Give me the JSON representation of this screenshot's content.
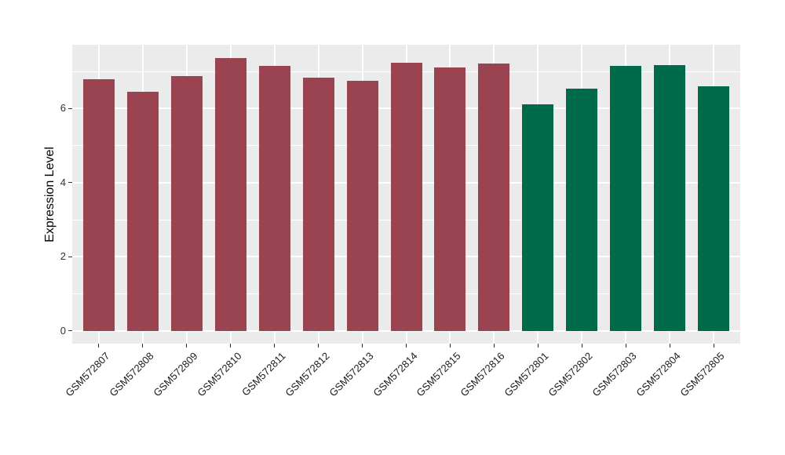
{
  "chart_data": {
    "type": "bar",
    "title": "",
    "xlabel": "",
    "ylabel": "Expression Level",
    "categories": [
      "GSM572807",
      "GSM572808",
      "GSM572809",
      "GSM572810",
      "GSM572811",
      "GSM572812",
      "GSM572813",
      "GSM572814",
      "GSM572815",
      "GSM572816",
      "GSM572801",
      "GSM572802",
      "GSM572803",
      "GSM572804",
      "GSM572805"
    ],
    "values": [
      6.79,
      6.45,
      6.88,
      7.36,
      7.15,
      6.83,
      6.74,
      7.23,
      7.1,
      7.22,
      6.12,
      6.53,
      7.14,
      7.16,
      6.6
    ],
    "bar_colors": [
      "#9A4452",
      "#9A4452",
      "#9A4452",
      "#9A4452",
      "#9A4452",
      "#9A4452",
      "#9A4452",
      "#9A4452",
      "#9A4452",
      "#9A4452",
      "#006B4A",
      "#006B4A",
      "#006B4A",
      "#006B4A",
      "#006B4A"
    ],
    "group_colors": {
      "first_group": "#9A4452",
      "second_group": "#006B4A"
    },
    "ylim": [
      0,
      7.72
    ],
    "yticks": [
      0,
      2,
      4,
      6
    ],
    "ytick_labels": [
      "0",
      "2",
      "4",
      "6"
    ],
    "yticks_minor": [
      1,
      3,
      5,
      7
    ],
    "grid": "on",
    "legend": "none",
    "panel_bg": "#EBEBEB",
    "grid_color": "#FFFFFF",
    "tick_color": "#333333"
  }
}
